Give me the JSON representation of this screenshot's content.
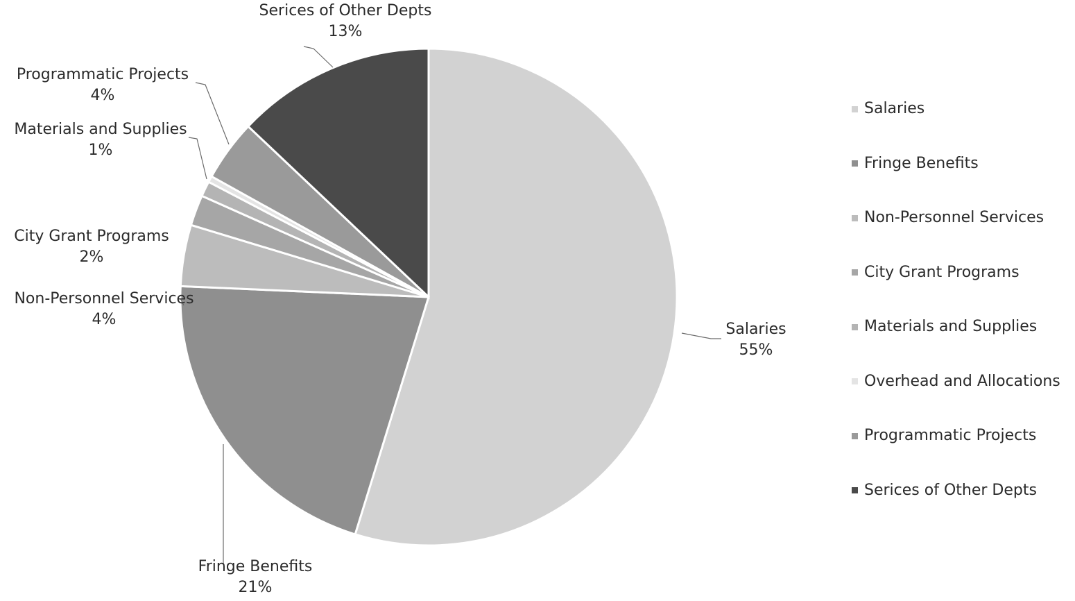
{
  "chart_data": {
    "type": "pie",
    "slices": [
      {
        "name": "Salaries",
        "value": 55,
        "label": "55%",
        "color": "#d2d2d2"
      },
      {
        "name": "Fringe Benefits",
        "value": 21,
        "label": "21%",
        "color": "#8f8f8f"
      },
      {
        "name": "Non-Personnel Services",
        "value": 4,
        "label": "4%",
        "color": "#bcbcbc"
      },
      {
        "name": "City Grant Programs",
        "value": 2,
        "label": "2%",
        "color": "#a6a6a6"
      },
      {
        "name": "Materials and Supplies",
        "value": 1,
        "label": "1%",
        "color": "#b4b4b4"
      },
      {
        "name": "Overhead and Allocations",
        "value": 0.4,
        "label": "",
        "color": "#e4e4e4"
      },
      {
        "name": "Programmatic Projects",
        "value": 4,
        "label": "4%",
        "color": "#9a9a9a"
      },
      {
        "name": "Serices of Other Depts",
        "value": 13,
        "label": "13%",
        "color": "#4a4a4a"
      }
    ],
    "legend": {
      "position": "right",
      "entries": [
        "Salaries",
        "Fringe Benefits",
        "Non-Personnel Services",
        "City Grant Programs",
        "Materials and Supplies",
        "Overhead and Allocations",
        "Programmatic Projects",
        "Serices of Other Depts"
      ]
    }
  }
}
